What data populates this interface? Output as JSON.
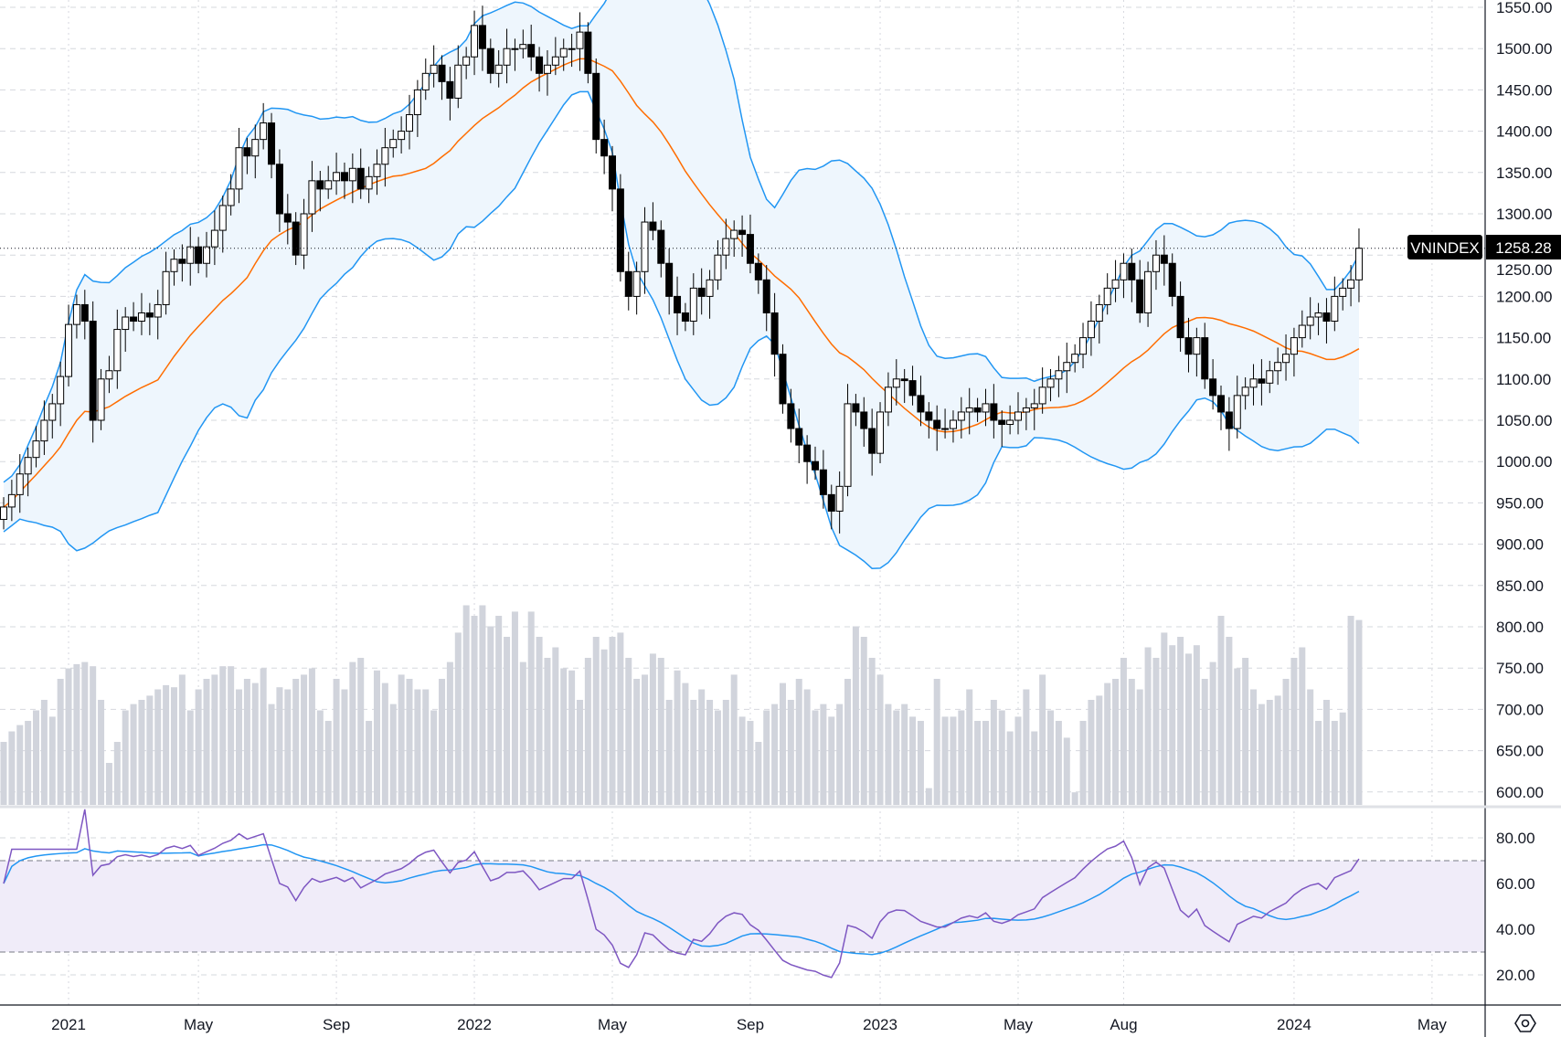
{
  "chart_data": {
    "type": "candlestick",
    "symbol": "VNINDEX",
    "last_price": "1258.28",
    "indicators": [
      "Bollinger Bands (20, 2)",
      "Volume",
      "RSI (14) with SMA"
    ],
    "price_ticks": [
      "1550.00",
      "1500.00",
      "1450.00",
      "1400.00",
      "1350.00",
      "1300.00",
      "1250.00",
      "1200.00",
      "1150.00",
      "1100.00",
      "1050.00",
      "1000.00",
      "950.00",
      "900.00",
      "850.00",
      "800.00",
      "750.00",
      "700.00",
      "650.00",
      "600.00"
    ],
    "rsi_ticks": [
      "80.00",
      "60.00",
      "40.00",
      "20.00"
    ],
    "rsi_bands": [
      30,
      70
    ],
    "time_ticks": [
      "2021",
      "May",
      "Sep",
      "2022",
      "May",
      "Sep",
      "2023",
      "May",
      "Aug",
      "2024",
      "May"
    ],
    "ylim": [
      600,
      1550
    ],
    "rsi_ylim": [
      10,
      90
    ],
    "close": [
      945,
      960,
      985,
      1005,
      1025,
      1050,
      1070,
      1103,
      1166,
      1190,
      1170,
      1050,
      1100,
      1110,
      1160,
      1175,
      1170,
      1180,
      1175,
      1190,
      1230,
      1245,
      1240,
      1260,
      1240,
      1260,
      1280,
      1310,
      1330,
      1380,
      1370,
      1390,
      1410,
      1360,
      1300,
      1290,
      1250,
      1300,
      1340,
      1330,
      1340,
      1350,
      1340,
      1355,
      1330,
      1345,
      1360,
      1380,
      1390,
      1400,
      1420,
      1450,
      1470,
      1480,
      1460,
      1440,
      1480,
      1490,
      1528,
      1500,
      1470,
      1480,
      1500,
      1500,
      1505,
      1490,
      1470,
      1480,
      1490,
      1500,
      1500,
      1520,
      1470,
      1390,
      1370,
      1330,
      1230,
      1200,
      1230,
      1290,
      1280,
      1240,
      1200,
      1180,
      1170,
      1210,
      1200,
      1220,
      1250,
      1270,
      1280,
      1275,
      1240,
      1220,
      1180,
      1130,
      1070,
      1040,
      1020,
      1000,
      990,
      960,
      940,
      970,
      1070,
      1060,
      1040,
      1010,
      1060,
      1090,
      1100,
      1098,
      1080,
      1060,
      1050,
      1040,
      1040,
      1050,
      1060,
      1065,
      1060,
      1070,
      1050,
      1045,
      1050,
      1060,
      1065,
      1070,
      1090,
      1100,
      1110,
      1120,
      1130,
      1150,
      1170,
      1190,
      1210,
      1220,
      1240,
      1220,
      1180,
      1230,
      1250,
      1240,
      1200,
      1150,
      1130,
      1150,
      1100,
      1080,
      1060,
      1040,
      1080,
      1090,
      1100,
      1095,
      1110,
      1120,
      1130,
      1150,
      1165,
      1175,
      1180,
      1170,
      1200,
      1210,
      1220,
      1258.28
    ],
    "volume": [
      30,
      35,
      38,
      40,
      45,
      50,
      42,
      60,
      65,
      67,
      68,
      66,
      50,
      20,
      30,
      45,
      48,
      50,
      52,
      55,
      57,
      56,
      62,
      45,
      55,
      60,
      62,
      66,
      66,
      55,
      60,
      58,
      65,
      48,
      56,
      55,
      60,
      62,
      65,
      45,
      40,
      60,
      55,
      68,
      70,
      40,
      64,
      58,
      48,
      62,
      60,
      55,
      55,
      45,
      60,
      68,
      82,
      95,
      90,
      95,
      85,
      90,
      80,
      92,
      68,
      92,
      80,
      70,
      75,
      65,
      64,
      50,
      70,
      80,
      74,
      80,
      82,
      70,
      60,
      62,
      72,
      70,
      50,
      64,
      58,
      50,
      55,
      50,
      45,
      50,
      62,
      42,
      40,
      30,
      45,
      48,
      58,
      50,
      60,
      55,
      45,
      48,
      42,
      48,
      60,
      85,
      80,
      70,
      62,
      48,
      45,
      48,
      42,
      40,
      8,
      60,
      42,
      42,
      45,
      55,
      40,
      40,
      50,
      45,
      35,
      42,
      55,
      35,
      62,
      45,
      40,
      32,
      6,
      40,
      50,
      52,
      58,
      60,
      70,
      60,
      55,
      75,
      70,
      82,
      76,
      80,
      72,
      76,
      60,
      68,
      90,
      80,
      65,
      70,
      55,
      48,
      50,
      52,
      60,
      70,
      75,
      55,
      40,
      50,
      40,
      44,
      90,
      88
    ],
    "colors": {
      "up_body": "#ffffff",
      "down_body": "#000000",
      "candle_border": "#000000",
      "bb_line": "#2196f3",
      "bb_fill": "#eef6fd",
      "bb_basis": "#ff6d00",
      "volume": "#d1d4dc",
      "rsi_line": "#7e57c2",
      "rsi_sma": "#2196f3",
      "rsi_band": "#f0ecf9"
    },
    "grid": true
  },
  "footer": {
    "settings_icon": "hexagon-settings-icon"
  }
}
